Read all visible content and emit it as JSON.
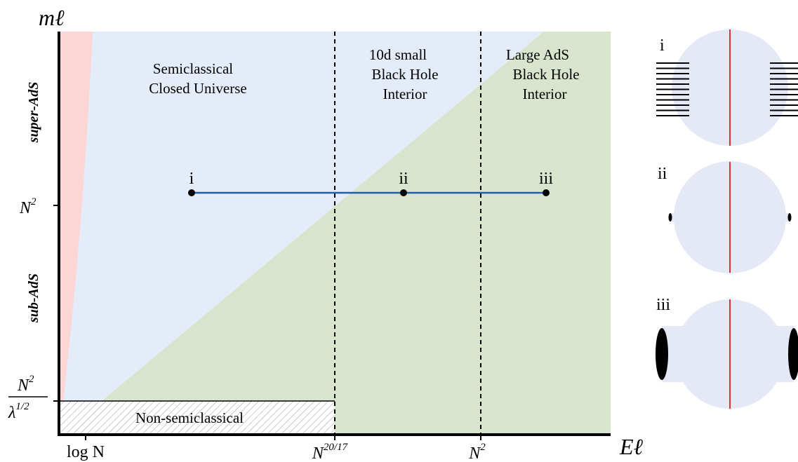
{
  "axes": {
    "y_label": "mℓ",
    "x_label": "Eℓ",
    "y_regions": [
      "super-AdS",
      "sub-AdS"
    ],
    "y_ticks": [
      {
        "base": "N",
        "sup": "2"
      },
      {
        "numerator": {
          "base": "N",
          "sup": "2"
        },
        "denominator": {
          "base": "λ",
          "sup": "1/2"
        }
      }
    ],
    "x_ticks": [
      {
        "base": "log N"
      },
      {
        "base": "N",
        "sup": "20/17"
      },
      {
        "base": "N",
        "sup": "2"
      }
    ]
  },
  "regions": [
    {
      "lines": [
        "Semiclassical",
        "Closed Universe"
      ]
    },
    {
      "lines": [
        "10d small",
        "Black Hole",
        "Interior"
      ]
    },
    {
      "lines": [
        "Large AdS",
        "Black Hole",
        "Interior"
      ]
    },
    {
      "lines": [
        "Non-semiclassical"
      ]
    }
  ],
  "points": [
    "i",
    "ii",
    "iii"
  ],
  "panels": [
    "i",
    "ii",
    "iii"
  ]
}
